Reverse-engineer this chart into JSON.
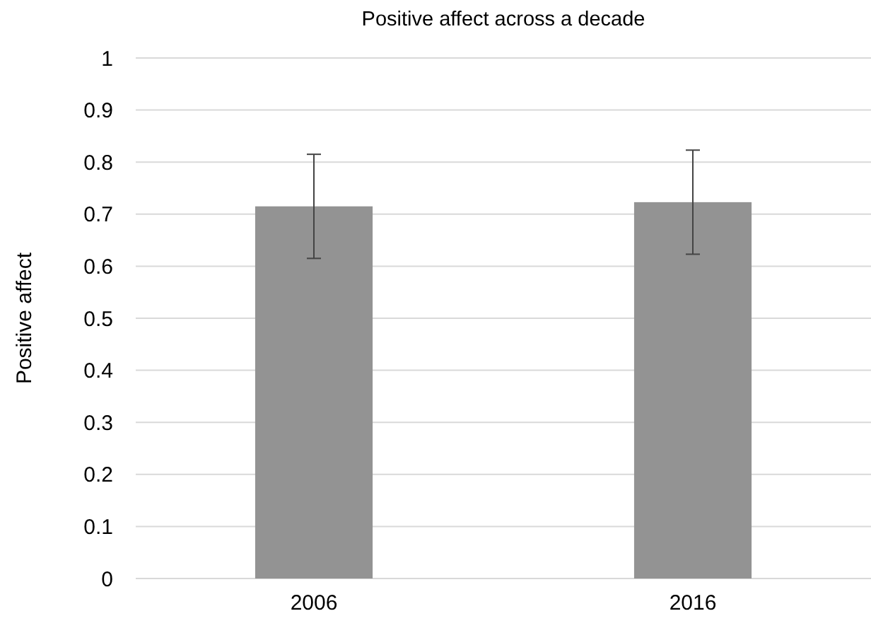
{
  "chart_data": {
    "type": "bar",
    "title": "Positive affect across a decade",
    "ylabel": "Positive affect",
    "categories": [
      "2006",
      "2016"
    ],
    "values": [
      0.715,
      0.723
    ],
    "errors": [
      0.1,
      0.1
    ],
    "color": "#939393",
    "ylim": [
      0,
      1
    ],
    "yticks": [
      0,
      0.1,
      0.2,
      0.3,
      0.4,
      0.5,
      0.6,
      0.7,
      0.8,
      0.9,
      1
    ],
    "grid": "y"
  }
}
